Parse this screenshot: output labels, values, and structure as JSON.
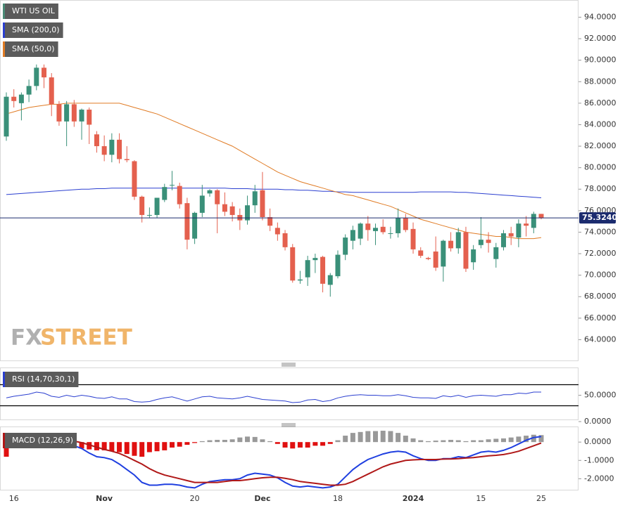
{
  "chart_data": [
    {
      "type": "candlestick",
      "title": "WTI US OIL",
      "categories": [
        null,
        "16",
        null,
        null,
        null,
        null,
        null,
        null,
        null,
        null,
        null,
        null,
        null,
        "Nov",
        null,
        null,
        null,
        null,
        null,
        null,
        null,
        null,
        null,
        null,
        null,
        "20",
        null,
        null,
        null,
        null,
        null,
        null,
        null,
        null,
        "Dec",
        null,
        null,
        null,
        null,
        null,
        null,
        null,
        null,
        null,
        "18",
        null,
        null,
        null,
        null,
        null,
        null,
        null,
        null,
        null,
        "2024",
        null,
        null,
        null,
        null,
        null,
        null,
        null,
        null,
        "15",
        null,
        null,
        null,
        null,
        null,
        null,
        null,
        "25"
      ],
      "open": [
        82.9,
        86.6,
        86.0,
        86.8,
        87.6,
        89.3,
        88.4,
        85.9,
        84.3,
        85.9,
        84.3,
        85.4,
        83.1,
        82.0,
        81.2,
        82.6,
        80.8,
        80.6,
        77.3,
        75.6,
        75.6,
        77.0,
        78.4,
        78.3,
        76.7,
        73.4,
        75.8,
        77.6,
        77.9,
        76.6,
        76.4,
        75.6,
        75.1,
        76.5,
        77.9,
        75.4,
        74.4,
        73.9,
        72.6,
        69.5,
        69.8,
        71.4,
        71.7,
        69.1,
        69.9,
        71.9,
        73.2,
        73.4,
        74.8,
        74.1,
        74.5,
        73.9,
        73.9,
        75.3,
        74.3,
        72.3,
        71.6,
        72.2,
        70.8,
        73.2,
        72.5,
        74.0,
        71.2,
        72.8,
        73.3,
        71.5,
        72.6,
        73.9,
        73.5,
        74.8,
        74.4,
        75.7
      ],
      "high": [
        87.0,
        87.3,
        87.0,
        88.2,
        89.6,
        89.6,
        88.8,
        86.2,
        86.2,
        86.3,
        85.5,
        85.6,
        83.4,
        83.0,
        83.2,
        83.2,
        82.0,
        80.7,
        77.4,
        76.3,
        77.2,
        78.5,
        79.7,
        78.6,
        77.2,
        75.9,
        78.4,
        78.0,
        78.0,
        77.7,
        76.8,
        76.2,
        77.4,
        78.4,
        79.6,
        76.2,
        74.9,
        74.2,
        72.9,
        70.4,
        71.8,
        72.0,
        71.8,
        70.2,
        72.3,
        73.8,
        74.6,
        74.9,
        75.5,
        74.8,
        75.2,
        74.5,
        76.2,
        75.7,
        74.9,
        72.6,
        71.7,
        73.6,
        73.3,
        74.0,
        74.4,
        74.5,
        72.8,
        75.4,
        74.0,
        73.0,
        74.2,
        74.5,
        75.2,
        75.5,
        75.9,
        75.7
      ],
      "low": [
        82.5,
        85.6,
        84.4,
        86.1,
        87.2,
        87.4,
        84.8,
        83.9,
        82.0,
        83.8,
        82.6,
        82.2,
        81.4,
        80.6,
        80.5,
        80.4,
        80.5,
        77.0,
        74.9,
        75.3,
        75.3,
        76.8,
        77.9,
        76.2,
        72.4,
        72.9,
        75.4,
        77.3,
        73.9,
        75.5,
        75.0,
        74.2,
        74.7,
        75.8,
        75.1,
        74.1,
        73.2,
        72.3,
        69.3,
        69.2,
        69.0,
        70.2,
        68.4,
        68.0,
        69.7,
        71.4,
        72.4,
        72.8,
        73.2,
        72.8,
        73.8,
        73.4,
        73.5,
        74.0,
        72.0,
        71.6,
        71.4,
        70.4,
        69.4,
        72.2,
        72.0,
        70.3,
        70.5,
        72.5,
        72.1,
        70.7,
        72.3,
        72.8,
        72.6,
        73.6,
        73.9,
        75.2
      ],
      "close": [
        86.6,
        86.2,
        86.8,
        87.6,
        89.3,
        88.4,
        85.9,
        84.3,
        85.9,
        84.3,
        85.4,
        84.0,
        82.0,
        81.2,
        82.6,
        80.8,
        80.7,
        77.3,
        75.6,
        75.6,
        77.2,
        78.2,
        78.4,
        76.6,
        73.3,
        75.8,
        77.4,
        77.9,
        76.6,
        75.9,
        75.6,
        75.1,
        76.5,
        77.8,
        75.4,
        74.6,
        73.8,
        72.6,
        69.5,
        69.6,
        71.4,
        71.6,
        69.2,
        70.0,
        71.9,
        73.5,
        74.2,
        74.8,
        74.2,
        74.4,
        74.0,
        73.9,
        75.3,
        74.2,
        72.4,
        71.8,
        71.5,
        70.7,
        73.2,
        72.5,
        74.0,
        70.6,
        72.4,
        73.3,
        73.0,
        72.6,
        73.9,
        73.6,
        74.8,
        74.6,
        75.7,
        75.3
      ],
      "up_color": "#3a9079",
      "down_color": "#e4604e",
      "series": [
        {
          "name": "SMA (200,0)",
          "color": "#2b3fd0",
          "values": [
            77.5,
            77.55,
            77.6,
            77.65,
            77.7,
            77.75,
            77.8,
            77.85,
            77.9,
            77.95,
            78.0,
            78.0,
            78.05,
            78.05,
            78.1,
            78.1,
            78.1,
            78.1,
            78.1,
            78.1,
            78.1,
            78.1,
            78.1,
            78.1,
            78.1,
            78.1,
            78.1,
            78.1,
            78.1,
            78.1,
            78.05,
            78.05,
            78.05,
            78.0,
            78.0,
            78.0,
            78.0,
            77.95,
            77.95,
            77.9,
            77.9,
            77.85,
            77.8,
            77.8,
            77.75,
            77.75,
            77.7,
            77.7,
            77.7,
            77.7,
            77.7,
            77.7,
            77.7,
            77.7,
            77.7,
            77.75,
            77.75,
            77.75,
            77.75,
            77.75,
            77.7,
            77.7,
            77.65,
            77.6,
            77.55,
            77.5,
            77.45,
            77.4,
            77.35,
            77.3,
            77.25,
            77.2
          ]
        },
        {
          "name": "SMA (50,0)",
          "color": "#e07b24",
          "values": [
            85.0,
            85.2,
            85.4,
            85.6,
            85.7,
            85.8,
            85.9,
            85.9,
            86.0,
            86.0,
            86.0,
            86.0,
            86.0,
            86.0,
            86.0,
            86.0,
            85.8,
            85.6,
            85.4,
            85.2,
            85.0,
            84.7,
            84.4,
            84.1,
            83.8,
            83.5,
            83.2,
            82.9,
            82.6,
            82.3,
            82.0,
            81.6,
            81.2,
            80.8,
            80.4,
            80.0,
            79.6,
            79.3,
            79.0,
            78.7,
            78.5,
            78.3,
            78.1,
            77.9,
            77.7,
            77.5,
            77.4,
            77.2,
            77.0,
            76.8,
            76.6,
            76.4,
            76.1,
            75.8,
            75.5,
            75.2,
            75.0,
            74.8,
            74.6,
            74.4,
            74.2,
            74.0,
            73.9,
            73.8,
            73.7,
            73.6,
            73.6,
            73.5,
            73.4,
            73.4,
            73.4,
            73.5
          ]
        }
      ],
      "last": {
        "value": 75.324,
        "label": "75.3240"
      },
      "ylim": [
        62,
        95.6
      ],
      "yticks": [
        {
          "value": 64,
          "label": "64.0000"
        },
        {
          "value": 66,
          "label": "66.0000"
        },
        {
          "value": 68,
          "label": "68.0000"
        },
        {
          "value": 70,
          "label": "70.0000"
        },
        {
          "value": 72,
          "label": "72.0000"
        },
        {
          "value": 74,
          "label": "74.0000"
        },
        {
          "value": 76,
          "label": "76.0000"
        },
        {
          "value": 78,
          "label": "78.0000"
        },
        {
          "value": 80,
          "label": "80.0000"
        },
        {
          "value": 82,
          "label": "82.0000"
        },
        {
          "value": 84,
          "label": "84.0000"
        },
        {
          "value": 86,
          "label": "86.0000"
        },
        {
          "value": 88,
          "label": "88.0000"
        },
        {
          "value": 90,
          "label": "90.0000"
        },
        {
          "value": 92,
          "label": "92.0000"
        },
        {
          "value": 94,
          "label": "94.0000"
        }
      ],
      "watermark": [
        "FX",
        "STREET"
      ]
    },
    {
      "type": "line",
      "title": "RSI (14,70,30,1)",
      "series": [
        {
          "color": "#2b3fd0",
          "values": [
            45,
            48,
            50,
            52,
            56,
            54,
            48,
            46,
            50,
            47,
            50,
            48,
            45,
            44,
            47,
            43,
            43,
            38,
            37,
            38,
            42,
            45,
            47,
            43,
            39,
            43,
            47,
            48,
            45,
            44,
            43,
            45,
            48,
            45,
            42,
            41,
            40,
            39,
            36,
            37,
            41,
            42,
            38,
            40,
            45,
            48,
            50,
            51,
            50,
            50,
            49,
            49,
            51,
            49,
            46,
            45,
            45,
            44,
            49,
            47,
            50,
            46,
            49,
            50,
            49,
            48,
            51,
            51,
            54,
            53,
            56,
            56
          ]
        }
      ],
      "levels": [
        70,
        30
      ],
      "ylim": [
        0,
        100
      ],
      "yticks": [
        {
          "value": 0,
          "label": "0.0000"
        },
        {
          "value": 50,
          "label": "50.0000"
        }
      ]
    },
    {
      "type": "combo",
      "title": "MACD (12,26,9)",
      "series": [
        {
          "kind": "line",
          "color": "#1f3fe0",
          "values": [
            0.45,
            0.3,
            0.2,
            0.2,
            0.3,
            0.3,
            0.15,
            -0.05,
            -0.15,
            -0.2,
            -0.35,
            -0.6,
            -0.8,
            -0.85,
            -0.95,
            -1.2,
            -1.5,
            -1.8,
            -2.2,
            -2.35,
            -2.35,
            -2.3,
            -2.3,
            -2.35,
            -2.45,
            -2.5,
            -2.3,
            -2.15,
            -2.1,
            -2.05,
            -2.05,
            -2.0,
            -1.8,
            -1.7,
            -1.75,
            -1.8,
            -1.95,
            -2.2,
            -2.4,
            -2.45,
            -2.4,
            -2.45,
            -2.5,
            -2.45,
            -2.3,
            -1.9,
            -1.5,
            -1.2,
            -0.95,
            -0.8,
            -0.65,
            -0.55,
            -0.5,
            -0.55,
            -0.75,
            -0.9,
            -1.0,
            -1.0,
            -0.9,
            -0.9,
            -0.8,
            -0.85,
            -0.7,
            -0.55,
            -0.5,
            -0.55,
            -0.45,
            -0.3,
            -0.1,
            0.1,
            0.25,
            0.3
          ]
        },
        {
          "kind": "line",
          "color": "#b01818",
          "values": [
            0.25,
            0.27,
            0.27,
            0.26,
            0.26,
            0.26,
            0.23,
            0.18,
            0.12,
            0.05,
            -0.03,
            -0.15,
            -0.28,
            -0.4,
            -0.5,
            -0.62,
            -0.8,
            -1.0,
            -1.2,
            -1.45,
            -1.65,
            -1.8,
            -1.9,
            -2.0,
            -2.1,
            -2.2,
            -2.2,
            -2.2,
            -2.2,
            -2.15,
            -2.1,
            -2.1,
            -2.05,
            -2.0,
            -1.95,
            -1.92,
            -1.92,
            -1.98,
            -2.05,
            -2.15,
            -2.2,
            -2.25,
            -2.3,
            -2.35,
            -2.35,
            -2.3,
            -2.15,
            -1.95,
            -1.75,
            -1.55,
            -1.35,
            -1.2,
            -1.1,
            -1.0,
            -0.97,
            -0.95,
            -0.95,
            -0.95,
            -0.93,
            -0.92,
            -0.9,
            -0.87,
            -0.85,
            -0.8,
            -0.75,
            -0.72,
            -0.68,
            -0.6,
            -0.5,
            -0.35,
            -0.2,
            -0.05
          ]
        },
        {
          "kind": "bar",
          "color": "#999999",
          "negative_color": "#e01010",
          "values": [
            -0.8,
            -0.3,
            -0.1,
            0.05,
            0.1,
            0.05,
            -0.1,
            -0.2,
            -0.25,
            -0.3,
            -0.35,
            -0.4,
            -0.45,
            -0.45,
            -0.5,
            -0.55,
            -0.65,
            -0.75,
            -0.8,
            -0.55,
            -0.5,
            -0.45,
            -0.3,
            -0.25,
            -0.15,
            -0.05,
            0.05,
            0.1,
            0.12,
            0.12,
            0.15,
            0.25,
            0.3,
            0.28,
            0.15,
            0.05,
            -0.1,
            -0.3,
            -0.35,
            -0.3,
            -0.3,
            -0.2,
            -0.2,
            -0.1,
            0.1,
            0.35,
            0.5,
            0.55,
            0.6,
            0.6,
            0.62,
            0.6,
            0.5,
            0.35,
            0.2,
            0.1,
            0.05,
            0.08,
            0.1,
            0.12,
            0.1,
            0.05,
            0.1,
            0.1,
            0.15,
            0.18,
            0.2,
            0.25,
            0.3,
            0.35,
            0.4,
            0.38
          ]
        }
      ],
      "ylim": [
        -2.6,
        0.85
      ],
      "yticks": [
        {
          "value": -2,
          "label": "-2.0000"
        },
        {
          "value": -1,
          "label": "-1.0000"
        },
        {
          "value": 0,
          "label": "0.0000"
        }
      ]
    }
  ]
}
